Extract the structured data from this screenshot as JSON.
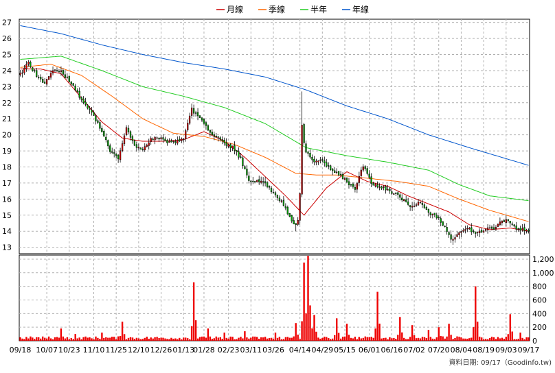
{
  "chart_data": {
    "type": "candlestick",
    "legend": [
      {
        "name": "月線",
        "color": "#cc0000"
      },
      {
        "name": "季線",
        "color": "#ff6600"
      },
      {
        "name": "半年",
        "color": "#22cc22"
      },
      {
        "name": "年線",
        "color": "#0055cc"
      }
    ],
    "price_axis": {
      "ylim": [
        12.6,
        27.2
      ],
      "ticks": [
        13,
        14,
        15,
        16,
        17,
        18,
        19,
        20,
        21,
        22,
        23,
        24,
        25,
        26,
        27
      ]
    },
    "volume_axis": {
      "ylim": [
        0,
        1260
      ],
      "ticks": [
        0,
        200,
        400,
        600,
        800,
        "1,000",
        "1,200"
      ]
    },
    "x_axis": {
      "labels": [
        "09/18",
        "10/07",
        "10/23",
        "11/10",
        "11/25",
        "12/10",
        "12/26",
        "01/13",
        "01/28",
        "02/23",
        "03/11",
        "03/26",
        "04/14",
        "04/29",
        "05/15",
        "06/01",
        "06/16",
        "07/02",
        "07/20",
        "08/04",
        "08/19",
        "09/03",
        "09/17"
      ],
      "label_index": [
        0,
        13,
        24,
        36,
        47,
        58,
        69,
        80,
        90,
        102,
        113,
        124,
        137,
        148,
        159,
        171,
        182,
        193,
        205,
        216,
        227,
        238,
        249
      ]
    },
    "footer": "資料日期: 09/17（Goodinfo.tw)",
    "price_anchors": [
      [
        0,
        23.8
      ],
      [
        4,
        24.5
      ],
      [
        8,
        23.7
      ],
      [
        12,
        23.2
      ],
      [
        16,
        24.0
      ],
      [
        20,
        23.9
      ],
      [
        24,
        23.4
      ],
      [
        28,
        22.6
      ],
      [
        32,
        21.9
      ],
      [
        36,
        21.2
      ],
      [
        40,
        20.2
      ],
      [
        44,
        19.0
      ],
      [
        48,
        18.6
      ],
      [
        52,
        20.4
      ],
      [
        56,
        19.3
      ],
      [
        60,
        19.1
      ],
      [
        64,
        19.7
      ],
      [
        68,
        19.8
      ],
      [
        72,
        19.6
      ],
      [
        76,
        19.5
      ],
      [
        80,
        19.8
      ],
      [
        84,
        21.6
      ],
      [
        88,
        21.0
      ],
      [
        92,
        20.3
      ],
      [
        96,
        19.9
      ],
      [
        100,
        19.4
      ],
      [
        104,
        19.2
      ],
      [
        108,
        18.5
      ],
      [
        112,
        17.2
      ],
      [
        116,
        17.1
      ],
      [
        120,
        17.0
      ],
      [
        124,
        16.4
      ],
      [
        128,
        15.8
      ],
      [
        132,
        14.9
      ],
      [
        135,
        14.3
      ],
      [
        136,
        14.6
      ],
      [
        137,
        16.4
      ],
      [
        138,
        20.5
      ],
      [
        139,
        19.6
      ],
      [
        140,
        19.0
      ],
      [
        144,
        18.3
      ],
      [
        148,
        18.4
      ],
      [
        152,
        17.9
      ],
      [
        156,
        17.5
      ],
      [
        160,
        17.1
      ],
      [
        164,
        16.6
      ],
      [
        168,
        18.1
      ],
      [
        172,
        17.0
      ],
      [
        176,
        16.8
      ],
      [
        180,
        16.6
      ],
      [
        184,
        16.3
      ],
      [
        188,
        15.9
      ],
      [
        192,
        15.5
      ],
      [
        196,
        15.9
      ],
      [
        200,
        15.2
      ],
      [
        204,
        14.9
      ],
      [
        208,
        14.3
      ],
      [
        211,
        13.4
      ],
      [
        212,
        13.4
      ],
      [
        216,
        14.0
      ],
      [
        220,
        14.1
      ],
      [
        224,
        13.9
      ],
      [
        228,
        14.1
      ],
      [
        232,
        14.2
      ],
      [
        236,
        14.7
      ],
      [
        240,
        14.6
      ],
      [
        244,
        14.1
      ],
      [
        249,
        14.1
      ]
    ],
    "ma_lines": [
      {
        "name": "月線",
        "color": "#cc0000",
        "points": [
          [
            0,
            24.1
          ],
          [
            10,
            24.1
          ],
          [
            20,
            23.8
          ],
          [
            30,
            22.3
          ],
          [
            40,
            20.8
          ],
          [
            50,
            19.8
          ],
          [
            60,
            19.6
          ],
          [
            70,
            19.6
          ],
          [
            80,
            19.7
          ],
          [
            90,
            20.2
          ],
          [
            100,
            19.6
          ],
          [
            110,
            18.6
          ],
          [
            120,
            17.4
          ],
          [
            130,
            16.2
          ],
          [
            139,
            15.0
          ],
          [
            150,
            16.7
          ],
          [
            160,
            17.7
          ],
          [
            170,
            17.1
          ],
          [
            180,
            16.8
          ],
          [
            190,
            16.2
          ],
          [
            200,
            15.7
          ],
          [
            210,
            15.2
          ],
          [
            220,
            14.4
          ],
          [
            230,
            14.1
          ],
          [
            240,
            14.2
          ],
          [
            249,
            14.0
          ]
        ]
      },
      {
        "name": "季線",
        "color": "#ff6600",
        "points": [
          [
            0,
            24.2
          ],
          [
            15,
            24.4
          ],
          [
            30,
            23.7
          ],
          [
            45,
            22.4
          ],
          [
            60,
            21.0
          ],
          [
            75,
            20.1
          ],
          [
            90,
            19.9
          ],
          [
            105,
            19.4
          ],
          [
            120,
            18.6
          ],
          [
            135,
            17.6
          ],
          [
            145,
            17.5
          ],
          [
            155,
            17.5
          ],
          [
            170,
            17.3
          ],
          [
            185,
            17.1
          ],
          [
            200,
            16.8
          ],
          [
            215,
            16.0
          ],
          [
            230,
            15.3
          ],
          [
            249,
            14.6
          ]
        ]
      },
      {
        "name": "半年",
        "color": "#22cc22",
        "points": [
          [
            0,
            24.7
          ],
          [
            20,
            24.9
          ],
          [
            40,
            24.0
          ],
          [
            60,
            23.0
          ],
          [
            80,
            22.4
          ],
          [
            100,
            21.7
          ],
          [
            120,
            20.7
          ],
          [
            140,
            19.2
          ],
          [
            160,
            18.7
          ],
          [
            180,
            18.3
          ],
          [
            200,
            17.8
          ],
          [
            215,
            16.9
          ],
          [
            230,
            16.2
          ],
          [
            249,
            15.9
          ]
        ]
      },
      {
        "name": "年線",
        "color": "#0055cc",
        "points": [
          [
            0,
            26.8
          ],
          [
            20,
            26.3
          ],
          [
            40,
            25.6
          ],
          [
            60,
            25.0
          ],
          [
            80,
            24.5
          ],
          [
            100,
            24.1
          ],
          [
            120,
            23.6
          ],
          [
            140,
            22.8
          ],
          [
            160,
            21.8
          ],
          [
            180,
            21.0
          ],
          [
            200,
            20.0
          ],
          [
            220,
            19.2
          ],
          [
            249,
            18.1
          ]
        ]
      }
    ],
    "volume_spikes": [
      [
        20,
        180
      ],
      [
        27,
        100
      ],
      [
        40,
        120
      ],
      [
        50,
        280
      ],
      [
        85,
        860
      ],
      [
        92,
        180
      ],
      [
        100,
        120
      ],
      [
        110,
        140
      ],
      [
        125,
        120
      ],
      [
        135,
        260
      ],
      [
        139,
        1150
      ],
      [
        141,
        1250
      ],
      [
        142,
        520
      ],
      [
        144,
        380
      ],
      [
        155,
        330
      ],
      [
        160,
        250
      ],
      [
        175,
        720
      ],
      [
        186,
        350
      ],
      [
        192,
        230
      ],
      [
        200,
        160
      ],
      [
        205,
        200
      ],
      [
        210,
        250
      ],
      [
        223,
        800
      ],
      [
        240,
        390
      ],
      [
        245,
        120
      ]
    ]
  }
}
